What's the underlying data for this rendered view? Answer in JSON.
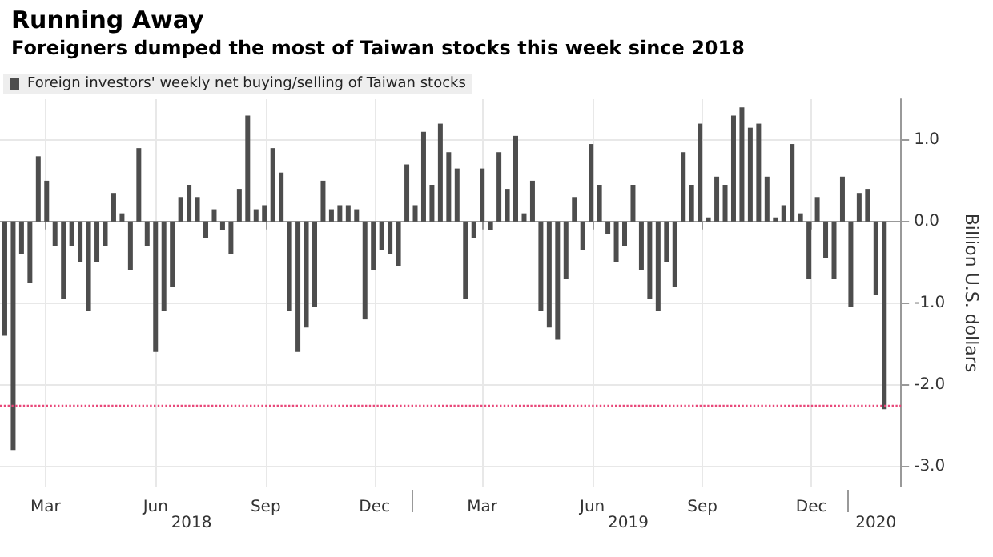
{
  "chart_data": {
    "type": "bar",
    "title": "Running Away",
    "subtitle": "Foreigners dumped the most of Taiwan stocks this week since 2018",
    "ylabel": "Billion U.S. dollars",
    "x": [
      "2018-01-26",
      "2018-02-02",
      "2018-02-09",
      "2018-02-16",
      "2018-02-23",
      "2018-03-02",
      "2018-03-09",
      "2018-03-16",
      "2018-03-23",
      "2018-03-30",
      "2018-04-06",
      "2018-04-13",
      "2018-04-20",
      "2018-04-27",
      "2018-05-04",
      "2018-05-11",
      "2018-05-18",
      "2018-05-25",
      "2018-06-01",
      "2018-06-08",
      "2018-06-15",
      "2018-06-22",
      "2018-06-29",
      "2018-07-06",
      "2018-07-13",
      "2018-07-20",
      "2018-07-27",
      "2018-08-03",
      "2018-08-10",
      "2018-08-17",
      "2018-08-24",
      "2018-08-31",
      "2018-09-07",
      "2018-09-14",
      "2018-09-21",
      "2018-09-28",
      "2018-10-05",
      "2018-10-12",
      "2018-10-19",
      "2018-10-26",
      "2018-11-02",
      "2018-11-09",
      "2018-11-16",
      "2018-11-23",
      "2018-11-30",
      "2018-12-07",
      "2018-12-14",
      "2018-12-21",
      "2018-12-28",
      "2019-01-04",
      "2019-01-11",
      "2019-01-18",
      "2019-01-25",
      "2019-02-01",
      "2019-02-08",
      "2019-02-15",
      "2019-02-22",
      "2019-03-01",
      "2019-03-08",
      "2019-03-15",
      "2019-03-22",
      "2019-03-29",
      "2019-04-05",
      "2019-04-12",
      "2019-04-19",
      "2019-04-26",
      "2019-05-03",
      "2019-05-10",
      "2019-05-17",
      "2019-05-24",
      "2019-05-31",
      "2019-06-07",
      "2019-06-14",
      "2019-06-21",
      "2019-06-28",
      "2019-07-05",
      "2019-07-12",
      "2019-07-19",
      "2019-07-26",
      "2019-08-02",
      "2019-08-09",
      "2019-08-16",
      "2019-08-23",
      "2019-08-30",
      "2019-09-06",
      "2019-09-13",
      "2019-09-20",
      "2019-09-27",
      "2019-10-04",
      "2019-10-11",
      "2019-10-18",
      "2019-10-25",
      "2019-11-01",
      "2019-11-08",
      "2019-11-15",
      "2019-11-22",
      "2019-11-29",
      "2019-12-06",
      "2019-12-13",
      "2019-12-20",
      "2019-12-27",
      "2020-01-03",
      "2020-01-10",
      "2020-01-17",
      "2020-01-24",
      "2020-01-31"
    ],
    "series": [
      {
        "name": "Foreign investors' weekly net buying/selling of Taiwan stocks",
        "color": "#4d4d4d",
        "values": [
          -1.4,
          -2.8,
          -0.4,
          -0.75,
          0.8,
          0.5,
          -0.3,
          -0.95,
          -0.3,
          -0.5,
          -1.1,
          -0.5,
          -0.3,
          0.35,
          0.1,
          -0.6,
          0.9,
          -0.3,
          -1.6,
          -1.1,
          -0.8,
          0.3,
          0.45,
          0.3,
          -0.2,
          0.15,
          -0.1,
          -0.4,
          0.4,
          1.3,
          0.15,
          0.2,
          0.9,
          0.6,
          -1.1,
          -1.6,
          -1.3,
          -1.05,
          0.5,
          0.15,
          0.2,
          0.2,
          0.15,
          -1.2,
          -0.6,
          -0.35,
          -0.4,
          -0.55,
          0.7,
          0.2,
          1.1,
          0.45,
          1.2,
          0.85,
          0.65,
          -0.95,
          -0.2,
          0.65,
          -0.1,
          0.85,
          0.4,
          1.05,
          0.1,
          0.5,
          -1.1,
          -1.3,
          -1.45,
          -0.7,
          0.3,
          -0.35,
          0.95,
          0.45,
          -0.15,
          -0.5,
          -0.3,
          0.45,
          -0.6,
          -0.95,
          -1.1,
          -0.5,
          -0.8,
          0.85,
          0.45,
          1.2,
          0.05,
          0.55,
          0.45,
          1.3,
          1.4,
          1.15,
          1.2,
          0.55,
          0.05,
          0.2,
          0.95,
          0.1,
          -0.7,
          0.3,
          -0.45,
          -0.7,
          0.55,
          -1.05,
          0.35,
          0.4,
          -0.9,
          -2.3
        ]
      }
    ],
    "xlim": [
      "2018-01-22",
      "2020-02-14"
    ],
    "xticks": [
      {
        "value": "2018-03-01",
        "label": "Mar"
      },
      {
        "value": "2018-06-01",
        "label": "Jun"
      },
      {
        "value": "2018-09-01",
        "label": "Sep"
      },
      {
        "value": "2018-12-01",
        "label": "Dec"
      },
      {
        "value": "2019-03-01",
        "label": "Mar"
      },
      {
        "value": "2019-06-01",
        "label": "Jun"
      },
      {
        "value": "2019-09-01",
        "label": "Sep"
      },
      {
        "value": "2019-12-01",
        "label": "Dec"
      }
    ],
    "ylim": [
      -3.25,
      1.5
    ],
    "yticks": [
      {
        "value": -3,
        "label": "-3.0"
      },
      {
        "value": -2,
        "label": "-2.0"
      },
      {
        "value": -1,
        "label": "-1.0"
      },
      {
        "value": 0,
        "label": "0.0"
      },
      {
        "value": 1,
        "label": "1.0"
      }
    ],
    "x2ticks": [
      {
        "value": "2018-07-01",
        "label": "2018"
      },
      {
        "value": "2019-01-01",
        "label": null
      },
      {
        "value": "2019-07-01",
        "label": "2019"
      },
      {
        "value": "2020-01-01",
        "label": null
      },
      {
        "value": "2020-01-24",
        "label": "2020"
      }
    ],
    "x2lim": [
      "2018-01-22",
      "2020-02-14"
    ],
    "ref_lines": [
      {
        "axis": "y",
        "value": -2.25,
        "color": "#e8487a",
        "line_style": "dotted"
      }
    ],
    "grid": true,
    "legend": "top left"
  }
}
